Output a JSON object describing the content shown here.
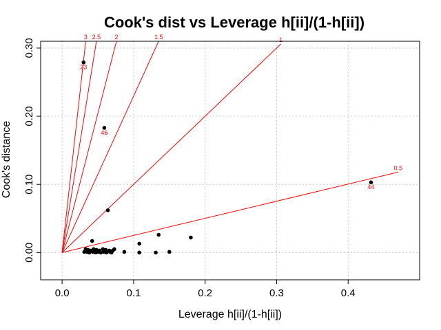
{
  "chart_data": {
    "type": "scatter",
    "title": "Cook's dist vs Leverage h[ii]/(1-h[ii])",
    "xlabel": "Leverage h[ii]/(1-h[ii])",
    "ylabel": "Cook's distance",
    "xlim": [
      -0.03,
      0.5
    ],
    "ylim": [
      -0.04,
      0.31
    ],
    "x_ticks": [
      0.0,
      0.1,
      0.2,
      0.3,
      0.4
    ],
    "x_tick_labels": [
      "0.0",
      "0.1",
      "0.2",
      "0.3",
      "0.4"
    ],
    "y_ticks": [
      0.0,
      0.1,
      0.2,
      0.3
    ],
    "y_tick_labels": [
      "0.00",
      "0.10",
      "0.20",
      "0.30"
    ],
    "grid": true,
    "contour_lines": [
      {
        "label": "3",
        "end": [
          0.033,
          0.31
        ]
      },
      {
        "label": "2.5",
        "end": [
          0.048,
          0.31
        ]
      },
      {
        "label": "2",
        "end": [
          0.076,
          0.31
        ]
      },
      {
        "label": "1.5",
        "end": [
          0.135,
          0.31
        ]
      },
      {
        "label": "1",
        "end": [
          0.306,
          0.306
        ]
      },
      {
        "label": "0.5",
        "end": [
          0.47,
          0.118
        ]
      }
    ],
    "points": [
      {
        "x": 0.03,
        "y": 0.279
      },
      {
        "x": 0.059,
        "y": 0.183
      },
      {
        "x": 0.432,
        "y": 0.103
      },
      {
        "x": 0.064,
        "y": 0.062
      },
      {
        "x": 0.135,
        "y": 0.026
      },
      {
        "x": 0.18,
        "y": 0.022
      },
      {
        "x": 0.042,
        "y": 0.017
      },
      {
        "x": 0.108,
        "y": 0.013
      },
      {
        "x": 0.033,
        "y": 0.005
      },
      {
        "x": 0.036,
        "y": 0.004
      },
      {
        "x": 0.04,
        "y": 0.003
      },
      {
        "x": 0.044,
        "y": 0.005
      },
      {
        "x": 0.048,
        "y": 0.004
      },
      {
        "x": 0.052,
        "y": 0.003
      },
      {
        "x": 0.057,
        "y": 0.005
      },
      {
        "x": 0.061,
        "y": 0.004
      },
      {
        "x": 0.066,
        "y": 0.003
      },
      {
        "x": 0.071,
        "y": 0.003
      },
      {
        "x": 0.073,
        "y": 0.005
      },
      {
        "x": 0.031,
        "y": 0.001
      },
      {
        "x": 0.035,
        "y": 0.001
      },
      {
        "x": 0.038,
        "y": 0.0
      },
      {
        "x": 0.043,
        "y": 0.001
      },
      {
        "x": 0.047,
        "y": 0.0
      },
      {
        "x": 0.05,
        "y": 0.001
      },
      {
        "x": 0.054,
        "y": 0.0
      },
      {
        "x": 0.058,
        "y": 0.001
      },
      {
        "x": 0.062,
        "y": 0.0
      },
      {
        "x": 0.067,
        "y": 0.001
      },
      {
        "x": 0.069,
        "y": 0.0
      },
      {
        "x": 0.087,
        "y": 0.001
      },
      {
        "x": 0.108,
        "y": 0.0
      },
      {
        "x": 0.131,
        "y": 0.0
      },
      {
        "x": 0.15,
        "y": 0.001
      }
    ],
    "point_labels": [
      {
        "text": "23",
        "x": 0.03,
        "y": 0.279
      },
      {
        "text": "46",
        "x": 0.059,
        "y": 0.183
      },
      {
        "text": "44",
        "x": 0.432,
        "y": 0.103
      }
    ],
    "colors": {
      "points": "#000000",
      "lines": "#ff0000",
      "grid": "#c8c8c8"
    }
  }
}
